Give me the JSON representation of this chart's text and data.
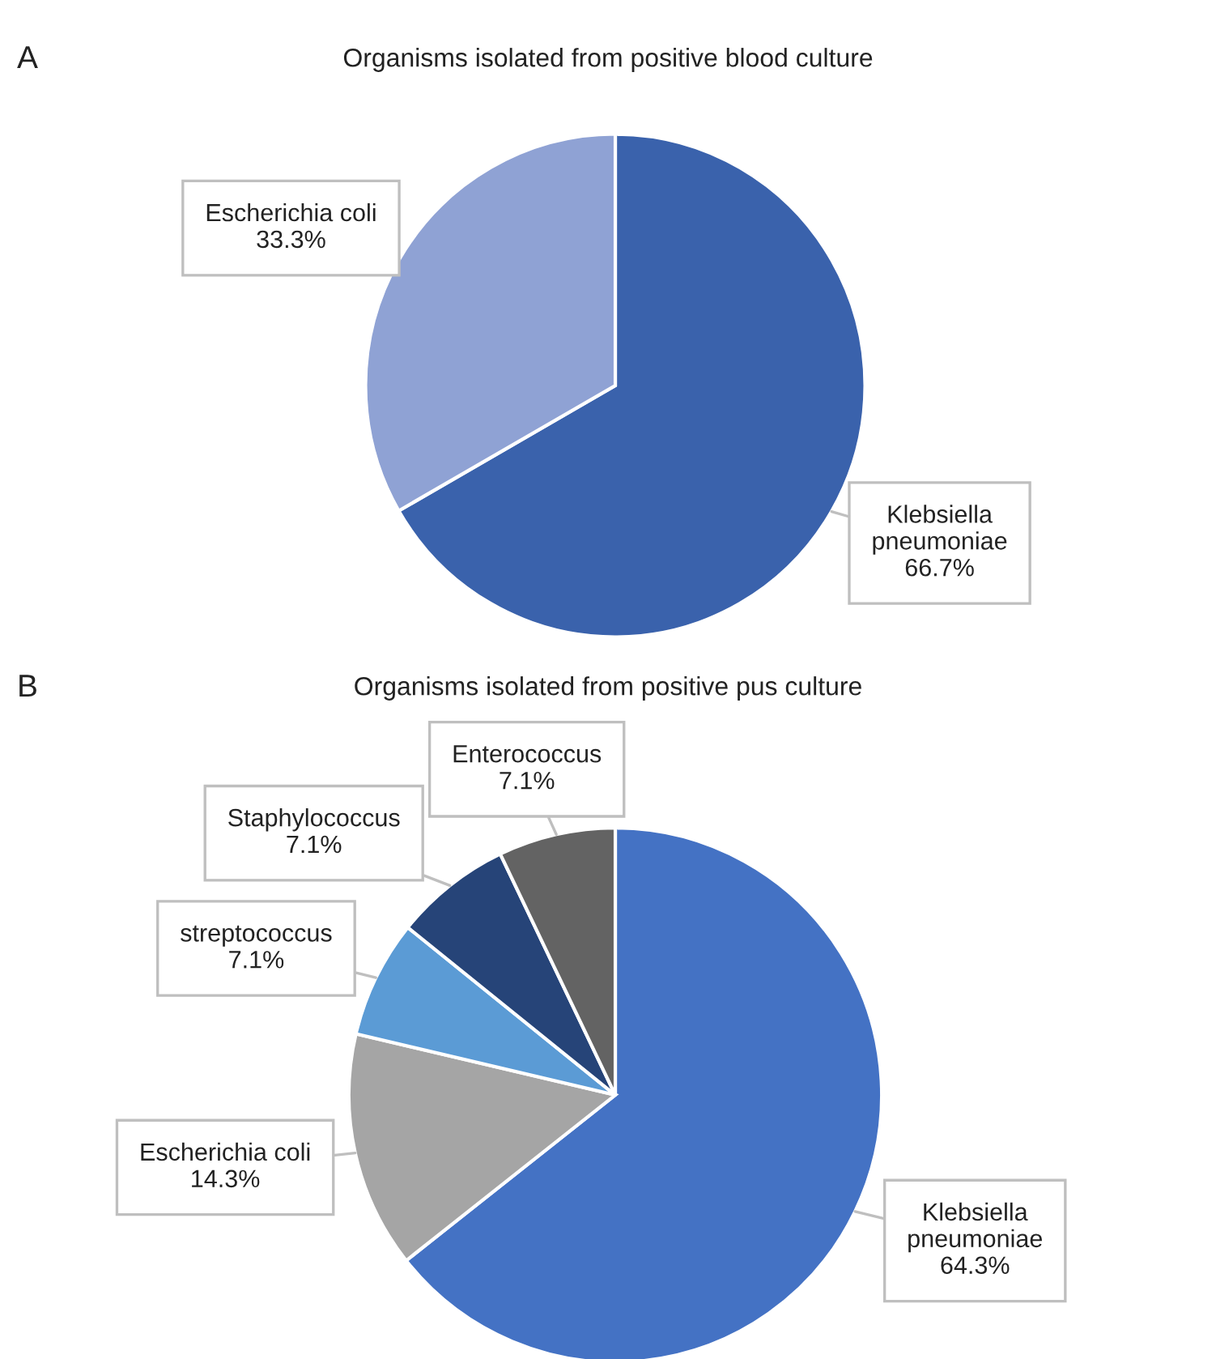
{
  "chart_data": [
    {
      "type": "pie",
      "title": "Organisms isolated from positive blood culture",
      "annotations": [
        "A"
      ],
      "categories": [
        "Klebsiella\npneumoniae",
        "Escherichia coli"
      ],
      "values": [
        66.7,
        33.3
      ],
      "value_labels": [
        "66.7%",
        "33.3%"
      ],
      "colors": [
        "#3a62ac",
        "#8fa2d4"
      ]
    },
    {
      "type": "pie",
      "title": "Organisms isolated from positive pus culture",
      "annotations": [
        "B"
      ],
      "categories": [
        "Klebsiella\npneumoniae",
        "Escherichia coli",
        "streptococcus",
        "Staphylococcus",
        "Enterococcus"
      ],
      "values": [
        64.3,
        14.3,
        7.1,
        7.1,
        7.1
      ],
      "value_labels": [
        "64.3%",
        "14.3%",
        "7.1%",
        "7.1%",
        "7.1%"
      ],
      "colors": [
        "#4472c4",
        "#a5a5a5",
        "#5b9bd5",
        "#264478",
        "#636363"
      ]
    }
  ]
}
